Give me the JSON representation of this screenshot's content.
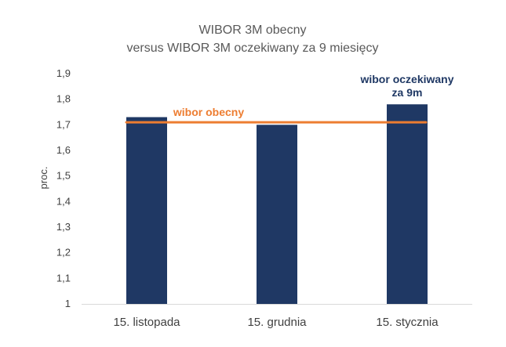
{
  "chart_data": {
    "type": "bar",
    "title_line1": "WIBOR 3M obecny",
    "title_line2": "versus WIBOR 3M oczekiwany za 9 miesięcy",
    "ylabel": "proc.",
    "xlabel": "",
    "categories": [
      "15. listopada",
      "15. grudnia",
      "15. stycznia"
    ],
    "values": [
      1.73,
      1.7,
      1.78
    ],
    "ylim": [
      1.0,
      1.9
    ],
    "yticks": [
      "1",
      "1,1",
      "1,2",
      "1,3",
      "1,4",
      "1,5",
      "1,6",
      "1,7",
      "1,8",
      "1,9"
    ],
    "ytick_values": [
      1.0,
      1.1,
      1.2,
      1.3,
      1.4,
      1.5,
      1.6,
      1.7,
      1.8,
      1.9
    ],
    "grid": false,
    "reference_line": {
      "value": 1.71,
      "label": "wibor obecny",
      "color": "#ed7d31"
    },
    "bar_annotation": {
      "bar_index": 2,
      "line1": "wibor oczekiwany",
      "line2": "za 9m",
      "color": "#1f3864"
    },
    "bar_color": "#1f3864"
  }
}
